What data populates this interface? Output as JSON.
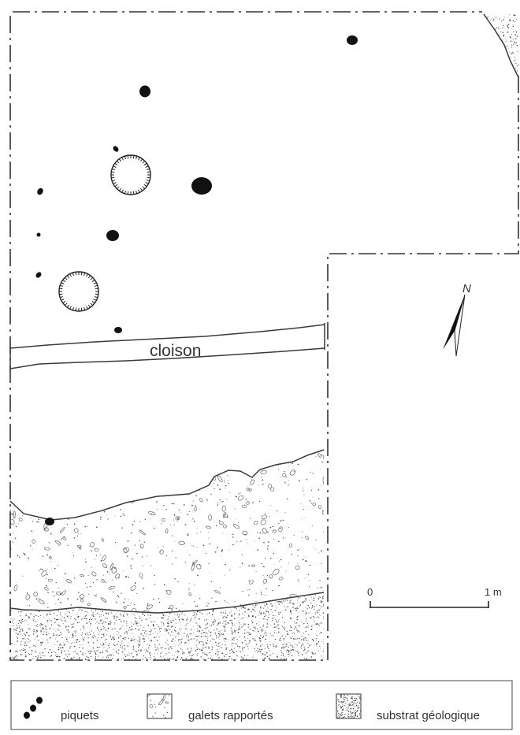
{
  "plan": {
    "wall_label": "cloison",
    "north_label": "N",
    "scale": {
      "start_label": "0",
      "end_label": "1 m"
    }
  },
  "legend": {
    "items": [
      {
        "key": "stakes",
        "label": "piquets",
        "symbol": "three-black-dots"
      },
      {
        "key": "pebbles",
        "label": "galets rapportés",
        "symbol": "pebble-texture-swatch"
      },
      {
        "key": "substrate",
        "label": "substrat géologique",
        "symbol": "stipple-swatch"
      }
    ]
  },
  "colors": {
    "ink": "#111111",
    "line": "#333333",
    "background": "#ffffff",
    "stipple": "#444444"
  }
}
